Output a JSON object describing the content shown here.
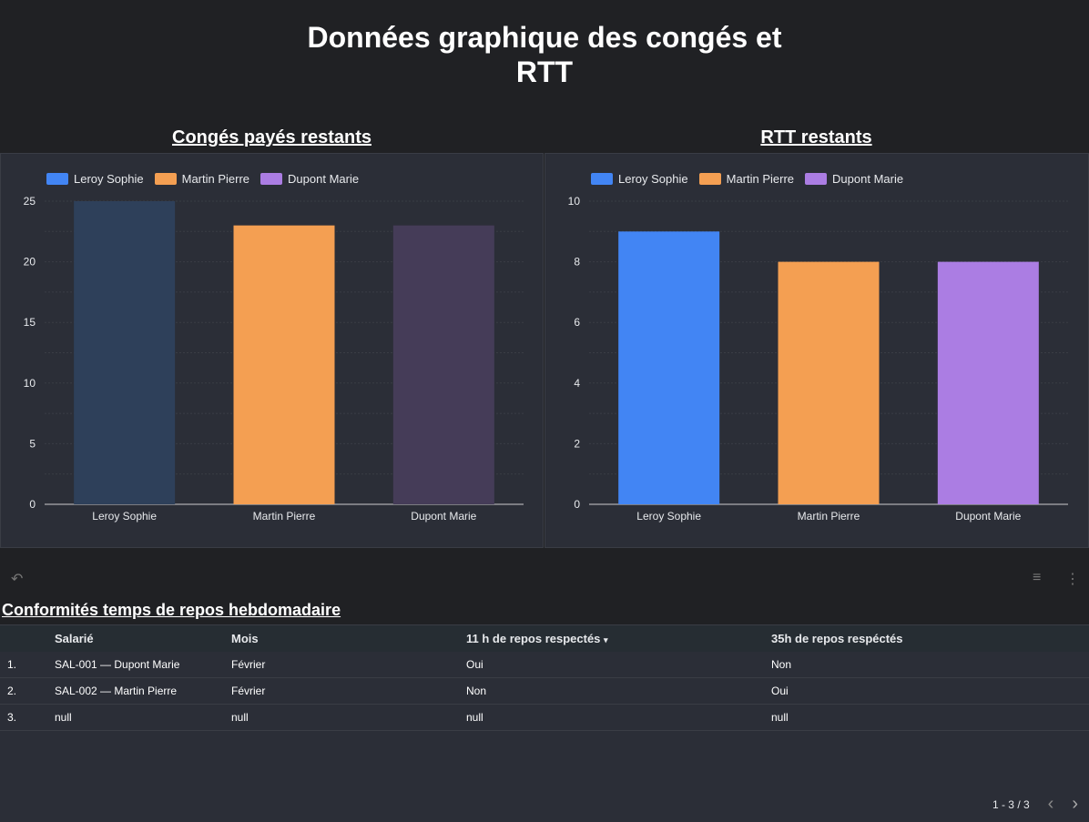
{
  "page_title": "Données graphique des congés et RTT",
  "page_title_lines": [
    "Données graphique des congés et",
    "RTT"
  ],
  "chart_data": [
    {
      "type": "bar",
      "title": "Congés payés restants",
      "categories": [
        "Leroy Sophie",
        "Martin Pierre",
        "Dupont Marie"
      ],
      "values": [
        25,
        23,
        23
      ],
      "ylim": [
        0,
        25
      ],
      "yticks": [
        0,
        5,
        10,
        15,
        20,
        25
      ],
      "legend": [
        "Leroy Sophie",
        "Martin Pierre",
        "Dupont Marie"
      ],
      "legend_placement": "top-left",
      "grid": true,
      "colors": [
        "#2e405a",
        "#f49f52",
        "#453c58"
      ],
      "legend_colors": [
        "#4285f4",
        "#f49f52",
        "#ab7de3"
      ]
    },
    {
      "type": "bar",
      "title": "RTT restants",
      "categories": [
        "Leroy Sophie",
        "Martin Pierre",
        "Dupont Marie"
      ],
      "values": [
        9,
        8,
        8
      ],
      "ylim": [
        0,
        10
      ],
      "yticks": [
        0,
        2,
        4,
        6,
        8,
        10
      ],
      "legend": [
        "Leroy Sophie",
        "Martin Pierre",
        "Dupont Marie"
      ],
      "legend_placement": "top-left",
      "grid": true,
      "colors": [
        "#4285f4",
        "#f49f52",
        "#ab7de3"
      ],
      "legend_colors": [
        "#4285f4",
        "#f49f52",
        "#ab7de3"
      ]
    }
  ],
  "table": {
    "title": "Conformités temps de repos hebdomadaire",
    "headers": [
      "",
      "Salarié",
      "Mois",
      "11 h de repos respectés",
      "35h de repos respéctés"
    ],
    "sort_indicator": "▾",
    "rows": [
      [
        "1.",
        "SAL-001 — Dupont Marie",
        "Février",
        "Oui",
        "Non"
      ],
      [
        "2.",
        "SAL-002 — Martin Pierre",
        "Février",
        "Non",
        "Oui"
      ],
      [
        "3.",
        "null",
        "null",
        "null",
        "null"
      ]
    ],
    "pagination": "1 - 3 / 3"
  },
  "icons": {
    "undo": "undo-icon",
    "filter": "filter-icon",
    "more": "more-vert-icon",
    "prev": "chevron-left-icon",
    "next": "chevron-right-icon"
  }
}
